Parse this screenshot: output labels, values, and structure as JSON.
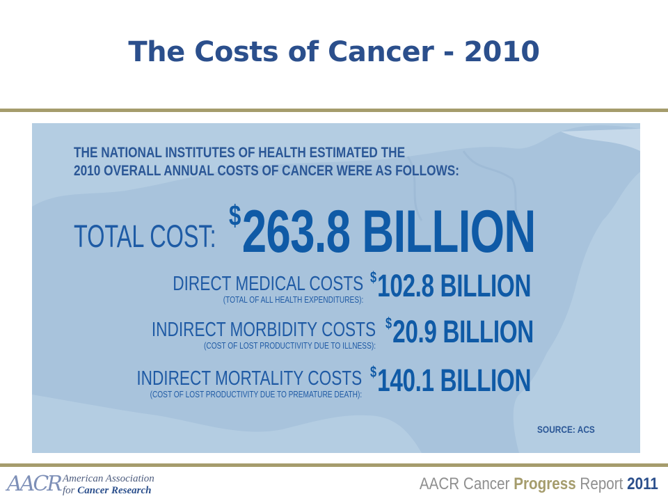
{
  "slide": {
    "title": "The Costs of Cancer - 2010"
  },
  "infographic": {
    "intro_line1": "THE NATIONAL INSTITUTES OF HEALTH ESTIMATED THE",
    "intro_line2": "2010 OVERALL ANNUAL COSTS OF CANCER WERE AS FOLLOWS:",
    "total_label": "TOTAL COST:",
    "total_currency": "$",
    "total_value": "263.8 BILLION",
    "rows": [
      {
        "label": "DIRECT MEDICAL COSTS",
        "sublabel": "(TOTAL OF ALL HEALTH EXPENDITURES):",
        "currency": "$",
        "value": "102.8 BILLION"
      },
      {
        "label": "INDIRECT MORBIDITY COSTS",
        "sublabel": "(COST OF LOST PRODUCTIVITY DUE TO ILLNESS):",
        "currency": "$",
        "value": "20.9 BILLION"
      },
      {
        "label": "INDIRECT MORTALITY COSTS",
        "sublabel": "(COST OF LOST PRODUCTIVITY DUE TO PREMATURE DEATH):",
        "currency": "$",
        "value": "140.1 BILLION"
      }
    ],
    "source": "SOURCE: ACS"
  },
  "footer": {
    "logo_mark": "AACR",
    "logo_line1": "American Association",
    "logo_line2_prefix": "for",
    "logo_line2_bold": "Cancer Research",
    "report_prefix": "AACR Cancer",
    "report_bold": "Progress",
    "report_mid": "Report",
    "report_year": "2011"
  },
  "colors": {
    "title": "#2b4f8c",
    "rule": "#a59c6c",
    "panel": "#b4cde2",
    "value_blue": "#0f5aa6"
  }
}
